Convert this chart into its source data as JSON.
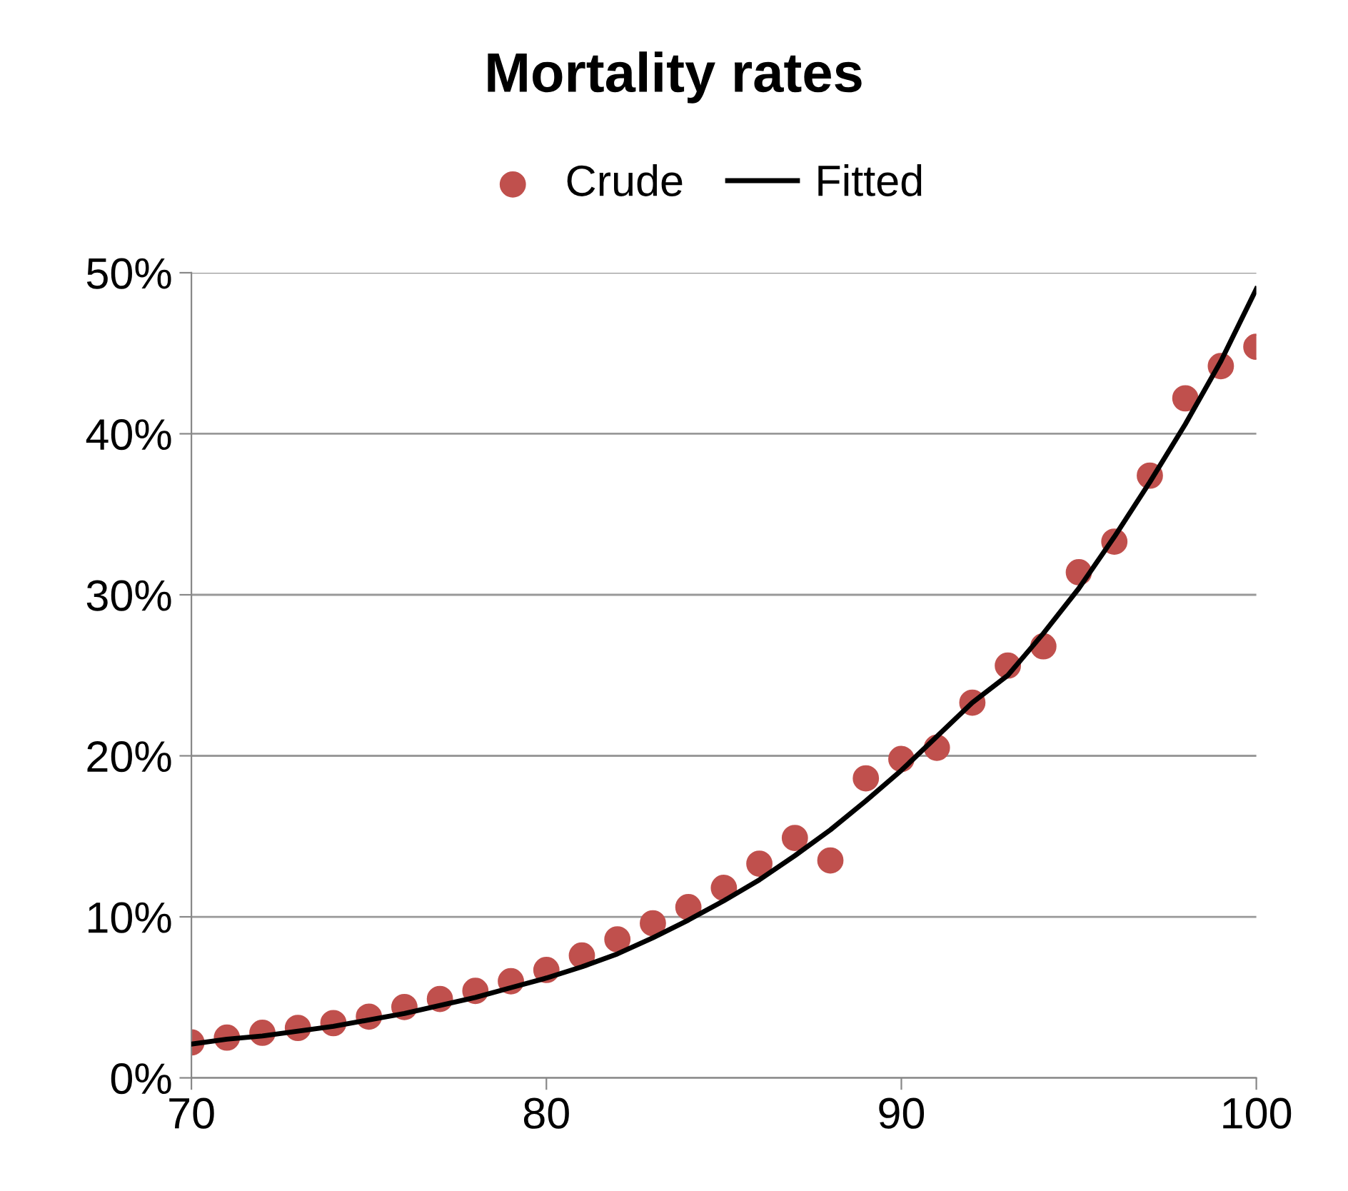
{
  "chart_data": {
    "type": "scatter",
    "title": "Mortality rates",
    "x": [
      70,
      71,
      72,
      73,
      74,
      75,
      76,
      77,
      78,
      79,
      80,
      81,
      82,
      83,
      84,
      85,
      86,
      87,
      88,
      89,
      90,
      91,
      92,
      93,
      94,
      95,
      96,
      97,
      98,
      99,
      100
    ],
    "series": [
      {
        "name": "Crude",
        "marker": "circle",
        "color": "#c0504d",
        "values": [
          2.2,
          2.5,
          2.8,
          3.1,
          3.4,
          3.8,
          4.4,
          4.9,
          5.4,
          6.0,
          6.7,
          7.6,
          8.6,
          9.6,
          10.6,
          11.8,
          13.3,
          14.9,
          13.5,
          18.6,
          19.8,
          20.5,
          23.3,
          25.6,
          26.8,
          31.4,
          33.3,
          37.4,
          42.2,
          44.2,
          45.4
        ]
      },
      {
        "name": "Fitted",
        "type": "line",
        "color": "#000000",
        "values": [
          2.1,
          2.4,
          2.6,
          2.9,
          3.2,
          3.6,
          4.0,
          4.5,
          5.0,
          5.6,
          6.2,
          6.9,
          7.7,
          8.7,
          9.8,
          11.0,
          12.3,
          13.8,
          15.4,
          17.2,
          19.1,
          21.2,
          23.3,
          25.0,
          27.6,
          30.4,
          33.6,
          37.0,
          40.6,
          44.5,
          49.0
        ]
      }
    ],
    "xlim": [
      70,
      100
    ],
    "xticks": [
      70,
      80,
      90,
      100
    ],
    "ylim": [
      0,
      50
    ],
    "yticks": [
      {
        "value": 0,
        "label": "0%"
      },
      {
        "value": 10,
        "label": "10%"
      },
      {
        "value": 20,
        "label": "20%"
      },
      {
        "value": 30,
        "label": "30%"
      },
      {
        "value": 40,
        "label": "40%"
      },
      {
        "value": 50,
        "label": "50%"
      }
    ],
    "grid": "y",
    "legend": "top"
  }
}
